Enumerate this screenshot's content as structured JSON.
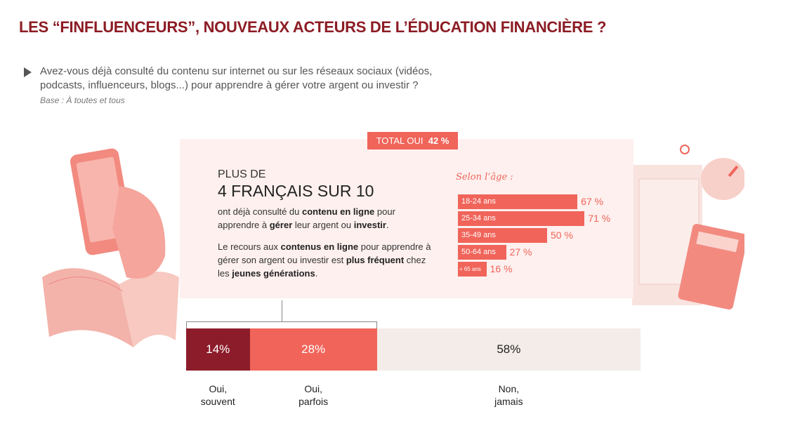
{
  "title": "LES “FINFLUENCEURS”, NOUVEAUX ACTEURS DE L’ÉDUCATION FINANCIÈRE ?",
  "question": "Avez-vous déjà consulté du contenu sur internet ou sur les réseaux sociaux (vidéos, podcasts, influenceurs, blogs...) pour apprendre à gérer votre argent ou investir ?",
  "base": "Base : À toutes et tous",
  "total": {
    "label": "TOTAL OUI",
    "value": "42 %"
  },
  "headline": {
    "pre": "PLUS DE",
    "main": "4 FRANÇAIS SUR 10"
  },
  "para1": {
    "t1": "ont déjà consulté du ",
    "b1": "contenu en ligne",
    "t2": " pour apprendre à ",
    "b2": "gérer",
    "t3": " leur argent ou ",
    "b3": "investir",
    "t4": "."
  },
  "para2": {
    "t1": "Le recours aux ",
    "b1": "contenus en ligne",
    "t2": " pour apprendre à gérer son argent ou investir est ",
    "b2": "plus fréquent",
    "t3": " chez les ",
    "b3": "jeunes générations",
    "t4": "."
  },
  "colors": {
    "dark": "#8c1c2a",
    "coral": "#f0645a",
    "light": "#f3ece8",
    "title": "#8c1c24"
  },
  "chart_data": [
    {
      "type": "bar",
      "orientation": "horizontal",
      "title": "Selon l’âge :",
      "categories": [
        "18-24 ans",
        "25-34 ans",
        "35-49 ans",
        "50-64 ans",
        "+ 65 ans"
      ],
      "values": [
        67,
        71,
        50,
        27,
        16
      ],
      "value_labels": [
        "67 %",
        "71 %",
        "50 %",
        "27 %",
        "16 %"
      ]
    },
    {
      "type": "bar",
      "stacked": true,
      "categories": [
        "Oui, souvent",
        "Oui, parfois",
        "Non, jamais"
      ],
      "values": [
        14,
        28,
        58
      ],
      "value_labels": [
        "14%",
        "28%",
        "58%"
      ],
      "label_lines": [
        [
          "Oui,",
          "souvent"
        ],
        [
          "Oui,",
          "parfois"
        ],
        [
          "Non,",
          "jamais"
        ]
      ]
    }
  ]
}
